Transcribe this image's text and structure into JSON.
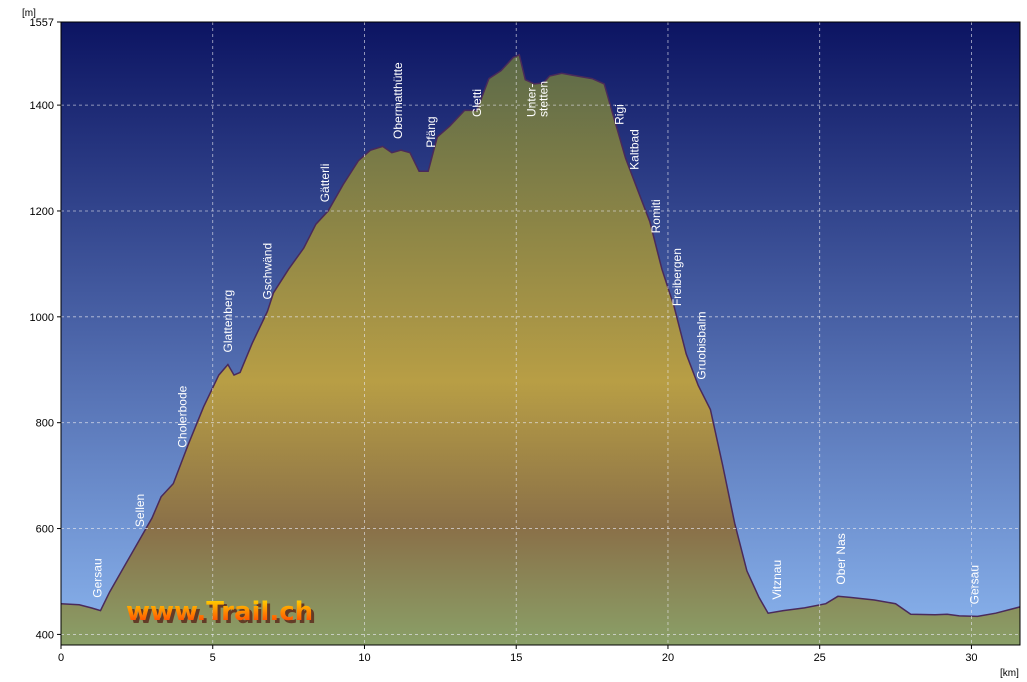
{
  "chart_data": {
    "type": "area",
    "y_unit": "[m]",
    "x_unit": "[km]",
    "ylim": [
      380,
      1557
    ],
    "xlim": [
      0,
      31.6
    ],
    "y_ticks": [
      {
        "value": 400,
        "label": "400"
      },
      {
        "value": 600,
        "label": "600"
      },
      {
        "value": 800,
        "label": "800"
      },
      {
        "value": 1000,
        "label": "1000"
      },
      {
        "value": 1200,
        "label": "1200"
      },
      {
        "value": 1400,
        "label": "1400"
      },
      {
        "value": 1557,
        "label": "1557"
      }
    ],
    "x_ticks": [
      {
        "value": 0,
        "label": "0"
      },
      {
        "value": 5,
        "label": "5"
      },
      {
        "value": 10,
        "label": "10"
      },
      {
        "value": 15,
        "label": "15"
      },
      {
        "value": 20,
        "label": "20"
      },
      {
        "value": 25,
        "label": "25"
      },
      {
        "value": 30,
        "label": "30"
      }
    ],
    "grid": true,
    "series": [
      {
        "points": [
          [
            0,
            458
          ],
          [
            0.6,
            456
          ],
          [
            1.0,
            450
          ],
          [
            1.3,
            445
          ],
          [
            1.6,
            480
          ],
          [
            2.0,
            520
          ],
          [
            2.5,
            570
          ],
          [
            3.0,
            620
          ],
          [
            3.3,
            660
          ],
          [
            3.7,
            685
          ],
          [
            4.2,
            760
          ],
          [
            4.7,
            830
          ],
          [
            5.2,
            890
          ],
          [
            5.5,
            910
          ],
          [
            5.7,
            890
          ],
          [
            5.9,
            895
          ],
          [
            6.3,
            950
          ],
          [
            6.8,
            1010
          ],
          [
            7.0,
            1045
          ],
          [
            7.5,
            1090
          ],
          [
            8.0,
            1130
          ],
          [
            8.4,
            1175
          ],
          [
            8.8,
            1200
          ],
          [
            9.3,
            1250
          ],
          [
            9.8,
            1295
          ],
          [
            10.2,
            1315
          ],
          [
            10.6,
            1322
          ],
          [
            10.9,
            1310
          ],
          [
            11.2,
            1315
          ],
          [
            11.5,
            1310
          ],
          [
            11.8,
            1275
          ],
          [
            12.1,
            1275
          ],
          [
            12.4,
            1340
          ],
          [
            12.8,
            1360
          ],
          [
            13.3,
            1390
          ],
          [
            13.7,
            1390
          ],
          [
            14.1,
            1450
          ],
          [
            14.5,
            1465
          ],
          [
            14.9,
            1490
          ],
          [
            15.1,
            1495
          ],
          [
            15.3,
            1448
          ],
          [
            15.6,
            1440
          ],
          [
            15.9,
            1442
          ],
          [
            16.1,
            1455
          ],
          [
            16.5,
            1460
          ],
          [
            17.0,
            1455
          ],
          [
            17.5,
            1450
          ],
          [
            17.9,
            1440
          ],
          [
            18.2,
            1380
          ],
          [
            18.6,
            1300
          ],
          [
            19.0,
            1240
          ],
          [
            19.4,
            1180
          ],
          [
            19.8,
            1090
          ],
          [
            20.2,
            1020
          ],
          [
            20.6,
            930
          ],
          [
            21.0,
            870
          ],
          [
            21.4,
            825
          ],
          [
            21.8,
            720
          ],
          [
            22.2,
            610
          ],
          [
            22.6,
            520
          ],
          [
            23.0,
            470
          ],
          [
            23.3,
            440
          ],
          [
            23.8,
            445
          ],
          [
            24.5,
            450
          ],
          [
            25.2,
            458
          ],
          [
            25.6,
            472
          ],
          [
            26.0,
            470
          ],
          [
            26.8,
            465
          ],
          [
            27.5,
            458
          ],
          [
            28.0,
            438
          ],
          [
            28.8,
            437
          ],
          [
            29.2,
            438
          ],
          [
            29.6,
            435
          ],
          [
            30.2,
            434
          ],
          [
            30.8,
            440
          ],
          [
            31.6,
            452
          ]
        ]
      }
    ],
    "annotations": [
      {
        "x": 1.2,
        "label": "Gersau"
      },
      {
        "x": 2.6,
        "label": "Sellen"
      },
      {
        "x": 4.0,
        "label": "Cholerbode"
      },
      {
        "x": 5.5,
        "label": "Glattenberg"
      },
      {
        "x": 6.8,
        "label": "Gschwänd"
      },
      {
        "x": 8.7,
        "label": "Gätterli"
      },
      {
        "x": 11.1,
        "label": "Obermatthütte"
      },
      {
        "x": 12.2,
        "label": "Pfäng"
      },
      {
        "x": 13.7,
        "label": "Gletti"
      },
      {
        "x": 15.5,
        "label": "Unter-"
      },
      {
        "x": 15.9,
        "label": "stetten"
      },
      {
        "x": 18.4,
        "label": "Rigi"
      },
      {
        "x": 18.9,
        "label": "Kaltbad"
      },
      {
        "x": 19.6,
        "label": "Romiti"
      },
      {
        "x": 20.3,
        "label": "Freibergen"
      },
      {
        "x": 21.1,
        "label": "Gruobisbalm"
      },
      {
        "x": 23.6,
        "label": "Vitznau"
      },
      {
        "x": 25.7,
        "label": "Ober Nas"
      },
      {
        "x": 30.1,
        "label": "Gersau"
      }
    ]
  },
  "watermark": "www.Trail.ch",
  "colors": {
    "sky_top": "#0c1462",
    "sky_bottom": "#8ab4ee",
    "ground_top": "#5e6b48",
    "ground_mid": "#b89e45",
    "ground_low": "#8a7048",
    "ground_bottom": "#8aa068",
    "profile_line": "#4a2a5a",
    "watermark_fill": "#ff3000",
    "watermark_highlight": "#ffe000"
  }
}
